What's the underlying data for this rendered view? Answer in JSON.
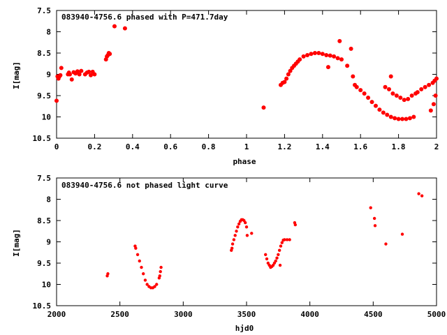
{
  "chart_data": [
    {
      "type": "scatter",
      "title": "083940-4756.6 phased with P=471.7day",
      "xlabel": "phase",
      "ylabel": "I[mag]",
      "xlim": [
        0,
        2
      ],
      "ylim": [
        7.5,
        10.5
      ],
      "y_inverted": true,
      "grid": false,
      "marker_color": "#ff0000",
      "xticks": [
        "0",
        "0.2",
        "0.4",
        "0.6",
        "0.8",
        "1",
        "1.2",
        "1.4",
        "1.6",
        "1.8",
        "2"
      ],
      "yticks": [
        "7.5",
        "8",
        "8.5",
        "9",
        "9.5",
        "10",
        "10.5"
      ],
      "points": [
        [
          0.0,
          9.62
        ],
        [
          0.005,
          9.05
        ],
        [
          0.01,
          9.1
        ],
        [
          0.015,
          9.05
        ],
        [
          0.02,
          9.02
        ],
        [
          0.025,
          8.85
        ],
        [
          0.06,
          9.0
        ],
        [
          0.065,
          8.96
        ],
        [
          0.07,
          9.0
        ],
        [
          0.08,
          9.12
        ],
        [
          0.09,
          8.95
        ],
        [
          0.1,
          8.98
        ],
        [
          0.11,
          8.93
        ],
        [
          0.12,
          9.0
        ],
        [
          0.13,
          8.92
        ],
        [
          0.15,
          9.0
        ],
        [
          0.16,
          8.96
        ],
        [
          0.17,
          8.94
        ],
        [
          0.18,
          9.02
        ],
        [
          0.19,
          8.94
        ],
        [
          0.2,
          9.0
        ],
        [
          0.26,
          8.65
        ],
        [
          0.265,
          8.58
        ],
        [
          0.27,
          8.55
        ],
        [
          0.275,
          8.5
        ],
        [
          0.28,
          8.52
        ],
        [
          0.305,
          7.87
        ],
        [
          0.36,
          7.92
        ],
        [
          1.09,
          9.78
        ],
        [
          1.18,
          9.25
        ],
        [
          1.19,
          9.2
        ],
        [
          1.2,
          9.18
        ],
        [
          1.21,
          9.1
        ],
        [
          1.22,
          9.0
        ],
        [
          1.23,
          8.92
        ],
        [
          1.24,
          8.85
        ],
        [
          1.25,
          8.8
        ],
        [
          1.26,
          8.75
        ],
        [
          1.27,
          8.7
        ],
        [
          1.28,
          8.65
        ],
        [
          1.3,
          8.58
        ],
        [
          1.32,
          8.55
        ],
        [
          1.34,
          8.52
        ],
        [
          1.36,
          8.5
        ],
        [
          1.38,
          8.5
        ],
        [
          1.4,
          8.52
        ],
        [
          1.42,
          8.55
        ],
        [
          1.43,
          8.83
        ],
        [
          1.44,
          8.56
        ],
        [
          1.46,
          8.58
        ],
        [
          1.48,
          8.62
        ],
        [
          1.49,
          8.22
        ],
        [
          1.5,
          8.65
        ],
        [
          1.53,
          8.8
        ],
        [
          1.55,
          8.4
        ],
        [
          1.56,
          9.05
        ],
        [
          1.57,
          9.25
        ],
        [
          1.58,
          9.3
        ],
        [
          1.6,
          9.37
        ],
        [
          1.62,
          9.45
        ],
        [
          1.64,
          9.55
        ],
        [
          1.66,
          9.65
        ],
        [
          1.68,
          9.74
        ],
        [
          1.7,
          9.83
        ],
        [
          1.72,
          9.9
        ],
        [
          1.73,
          9.3
        ],
        [
          1.74,
          9.95
        ],
        [
          1.75,
          9.35
        ],
        [
          1.76,
          10.0
        ],
        [
          1.76,
          9.05
        ],
        [
          1.77,
          9.45
        ],
        [
          1.78,
          10.03
        ],
        [
          1.79,
          9.5
        ],
        [
          1.8,
          10.05
        ],
        [
          1.81,
          9.55
        ],
        [
          1.82,
          10.05
        ],
        [
          1.83,
          9.6
        ],
        [
          1.84,
          10.05
        ],
        [
          1.85,
          9.58
        ],
        [
          1.86,
          10.03
        ],
        [
          1.87,
          9.5
        ],
        [
          1.88,
          10.0
        ],
        [
          1.89,
          9.45
        ],
        [
          1.9,
          9.42
        ],
        [
          1.92,
          9.35
        ],
        [
          1.94,
          9.3
        ],
        [
          1.96,
          9.25
        ],
        [
          1.97,
          9.85
        ],
        [
          1.98,
          9.2
        ],
        [
          1.985,
          9.7
        ],
        [
          1.99,
          9.15
        ],
        [
          1.995,
          9.5
        ],
        [
          2.0,
          9.1
        ]
      ]
    },
    {
      "type": "scatter",
      "title": "083940-4756.6 not phased light curve",
      "xlabel": "hjd0",
      "ylabel": "I[mag]",
      "xlim": [
        2000,
        5000
      ],
      "ylim": [
        7.5,
        10.5
      ],
      "y_inverted": true,
      "grid": false,
      "marker_color": "#ff0000",
      "xticks": [
        "2000",
        "2500",
        "3000",
        "3500",
        "4000",
        "4500",
        "5000"
      ],
      "yticks": [
        "7.5",
        "8",
        "8.5",
        "9",
        "9.5",
        "10",
        "10.5"
      ],
      "points": [
        [
          2400,
          9.8
        ],
        [
          2405,
          9.75
        ],
        [
          2620,
          9.1
        ],
        [
          2625,
          9.15
        ],
        [
          2640,
          9.3
        ],
        [
          2655,
          9.45
        ],
        [
          2670,
          9.6
        ],
        [
          2685,
          9.75
        ],
        [
          2700,
          9.9
        ],
        [
          2715,
          10.0
        ],
        [
          2730,
          10.05
        ],
        [
          2745,
          10.08
        ],
        [
          2760,
          10.08
        ],
        [
          2775,
          10.05
        ],
        [
          2790,
          10.0
        ],
        [
          2810,
          9.85
        ],
        [
          2815,
          9.8
        ],
        [
          2820,
          9.7
        ],
        [
          2825,
          9.6
        ],
        [
          3380,
          9.2
        ],
        [
          3385,
          9.15
        ],
        [
          3390,
          9.05
        ],
        [
          3400,
          8.95
        ],
        [
          3410,
          8.85
        ],
        [
          3420,
          8.75
        ],
        [
          3430,
          8.65
        ],
        [
          3440,
          8.58
        ],
        [
          3450,
          8.52
        ],
        [
          3460,
          8.48
        ],
        [
          3470,
          8.48
        ],
        [
          3480,
          8.5
        ],
        [
          3490,
          8.55
        ],
        [
          3500,
          8.65
        ],
        [
          3505,
          8.85
        ],
        [
          3540,
          8.8
        ],
        [
          3650,
          9.3
        ],
        [
          3660,
          9.4
        ],
        [
          3670,
          9.5
        ],
        [
          3680,
          9.55
        ],
        [
          3690,
          9.6
        ],
        [
          3700,
          9.58
        ],
        [
          3710,
          9.55
        ],
        [
          3720,
          9.5
        ],
        [
          3730,
          9.45
        ],
        [
          3740,
          9.38
        ],
        [
          3750,
          9.3
        ],
        [
          3760,
          9.2
        ],
        [
          3765,
          9.55
        ],
        [
          3770,
          9.1
        ],
        [
          3780,
          9.02
        ],
        [
          3790,
          8.96
        ],
        [
          3800,
          8.95
        ],
        [
          3820,
          8.95
        ],
        [
          3840,
          8.95
        ],
        [
          3880,
          8.55
        ],
        [
          3885,
          8.6
        ],
        [
          4480,
          8.2
        ],
        [
          4510,
          8.45
        ],
        [
          4515,
          8.62
        ],
        [
          4600,
          9.05
        ],
        [
          4730,
          8.82
        ],
        [
          4860,
          7.87
        ],
        [
          4885,
          7.92
        ]
      ]
    }
  ]
}
